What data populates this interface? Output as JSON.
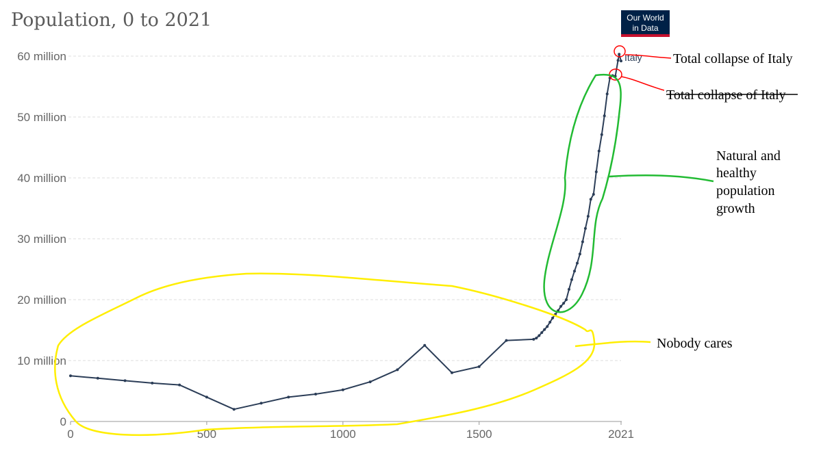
{
  "chart_data": {
    "type": "line",
    "title": "Population, 0 to 2021",
    "xlabel": "",
    "ylabel": "",
    "xlim": [
      0,
      2021
    ],
    "ylim": [
      0,
      60000000
    ],
    "x_ticks": [
      {
        "value": 0,
        "label": "0"
      },
      {
        "value": 500,
        "label": "500"
      },
      {
        "value": 1000,
        "label": "1000"
      },
      {
        "value": 1500,
        "label": "1500"
      },
      {
        "value": 2021,
        "label": "2021"
      }
    ],
    "y_ticks": [
      {
        "value": 0,
        "label": "0"
      },
      {
        "value": 10000000,
        "label": "10 million"
      },
      {
        "value": 20000000,
        "label": "20 million"
      },
      {
        "value": 30000000,
        "label": "30 million"
      },
      {
        "value": 40000000,
        "label": "40 million"
      },
      {
        "value": 50000000,
        "label": "50 million"
      },
      {
        "value": 60000000,
        "label": "60 million"
      }
    ],
    "grid": true,
    "series": [
      {
        "name": "Italy",
        "color": "#2b3d57",
        "points": [
          [
            0,
            7500000
          ],
          [
            100,
            7100000
          ],
          [
            200,
            6700000
          ],
          [
            300,
            6300000
          ],
          [
            400,
            6000000
          ],
          [
            500,
            4000000
          ],
          [
            600,
            2000000
          ],
          [
            700,
            3000000
          ],
          [
            800,
            4000000
          ],
          [
            900,
            4500000
          ],
          [
            1000,
            5200000
          ],
          [
            1100,
            6500000
          ],
          [
            1200,
            8500000
          ],
          [
            1300,
            12500000
          ],
          [
            1400,
            8000000
          ],
          [
            1500,
            9000000
          ],
          [
            1600,
            13300000
          ],
          [
            1700,
            13500000
          ],
          [
            1710,
            13700000
          ],
          [
            1720,
            14100000
          ],
          [
            1730,
            14600000
          ],
          [
            1740,
            15100000
          ],
          [
            1750,
            15600000
          ],
          [
            1760,
            16300000
          ],
          [
            1770,
            17000000
          ],
          [
            1780,
            17600000
          ],
          [
            1790,
            18200000
          ],
          [
            1800,
            18900000
          ],
          [
            1810,
            19400000
          ],
          [
            1820,
            20000000
          ],
          [
            1830,
            21700000
          ],
          [
            1840,
            23300000
          ],
          [
            1850,
            24700000
          ],
          [
            1860,
            26000000
          ],
          [
            1870,
            27500000
          ],
          [
            1880,
            29500000
          ],
          [
            1890,
            31700000
          ],
          [
            1900,
            33700000
          ],
          [
            1910,
            36500000
          ],
          [
            1920,
            37300000
          ],
          [
            1930,
            41000000
          ],
          [
            1940,
            44400000
          ],
          [
            1950,
            47100000
          ],
          [
            1960,
            50200000
          ],
          [
            1970,
            53800000
          ],
          [
            1980,
            56400000
          ],
          [
            1990,
            56800000
          ],
          [
            2000,
            56700000
          ],
          [
            2010,
            59300000
          ],
          [
            2014,
            60300000
          ],
          [
            2021,
            59200000
          ]
        ]
      }
    ],
    "series_label": "Italy",
    "source_logo": {
      "line1": "Our World",
      "line2": "in Data"
    },
    "annotations": [
      {
        "text": "Total collapse of Italy",
        "color": "#ff0000",
        "strikethrough": false
      },
      {
        "text": "Total collapse of Italy",
        "color": "#ff0000",
        "strikethrough": true
      },
      {
        "text_lines": [
          "Natural and",
          "healthy",
          "population",
          "growth"
        ],
        "color": "#22bb33"
      },
      {
        "text": "Nobody cares",
        "color": "#ffee00"
      }
    ]
  }
}
